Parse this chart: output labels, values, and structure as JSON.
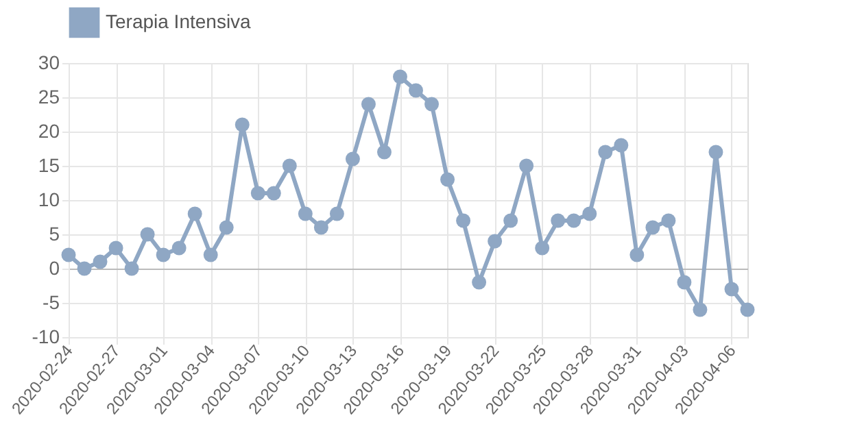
{
  "chart_data": {
    "type": "line",
    "x": [
      "2020-02-24",
      "2020-02-25",
      "2020-02-26",
      "2020-02-27",
      "2020-02-28",
      "2020-02-29",
      "2020-03-01",
      "2020-03-02",
      "2020-03-03",
      "2020-03-04",
      "2020-03-05",
      "2020-03-06",
      "2020-03-07",
      "2020-03-08",
      "2020-03-09",
      "2020-03-10",
      "2020-03-11",
      "2020-03-12",
      "2020-03-13",
      "2020-03-14",
      "2020-03-15",
      "2020-03-16",
      "2020-03-17",
      "2020-03-18",
      "2020-03-19",
      "2020-03-20",
      "2020-03-21",
      "2020-03-22",
      "2020-03-23",
      "2020-03-24",
      "2020-03-25",
      "2020-03-26",
      "2020-03-27",
      "2020-03-28",
      "2020-03-29",
      "2020-03-30",
      "2020-03-31",
      "2020-04-01",
      "2020-04-02",
      "2020-04-03",
      "2020-04-04",
      "2020-04-05",
      "2020-04-06",
      "2020-04-07"
    ],
    "series": [
      {
        "name": "Terapia Intensiva",
        "color": "#8fa7c4",
        "values": [
          2,
          0,
          1,
          3,
          0,
          5,
          2,
          3,
          8,
          2,
          6,
          21,
          11,
          11,
          15,
          8,
          6,
          8,
          16,
          24,
          17,
          28,
          26,
          24,
          13,
          7,
          -2,
          4,
          7,
          15,
          3,
          7,
          7,
          8,
          17,
          18,
          2,
          6,
          7,
          -2,
          -6,
          17,
          -3,
          -6
        ]
      }
    ],
    "xlim": [
      "2020-02-24",
      "2020-04-07"
    ],
    "xticks": [
      "2020-02-24",
      "2020-02-27",
      "2020-03-01",
      "2020-03-04",
      "2020-03-07",
      "2020-03-10",
      "2020-03-13",
      "2020-03-16",
      "2020-03-19",
      "2020-03-22",
      "2020-03-25",
      "2020-03-28",
      "2020-03-31",
      "2020-04-03",
      "2020-04-06"
    ],
    "ylim": [
      -10,
      30
    ],
    "yticks": [
      -10,
      -5,
      0,
      5,
      10,
      15,
      20,
      25,
      30
    ],
    "grid": true,
    "legend": "top",
    "marker": "circle",
    "line_style": "solid"
  }
}
